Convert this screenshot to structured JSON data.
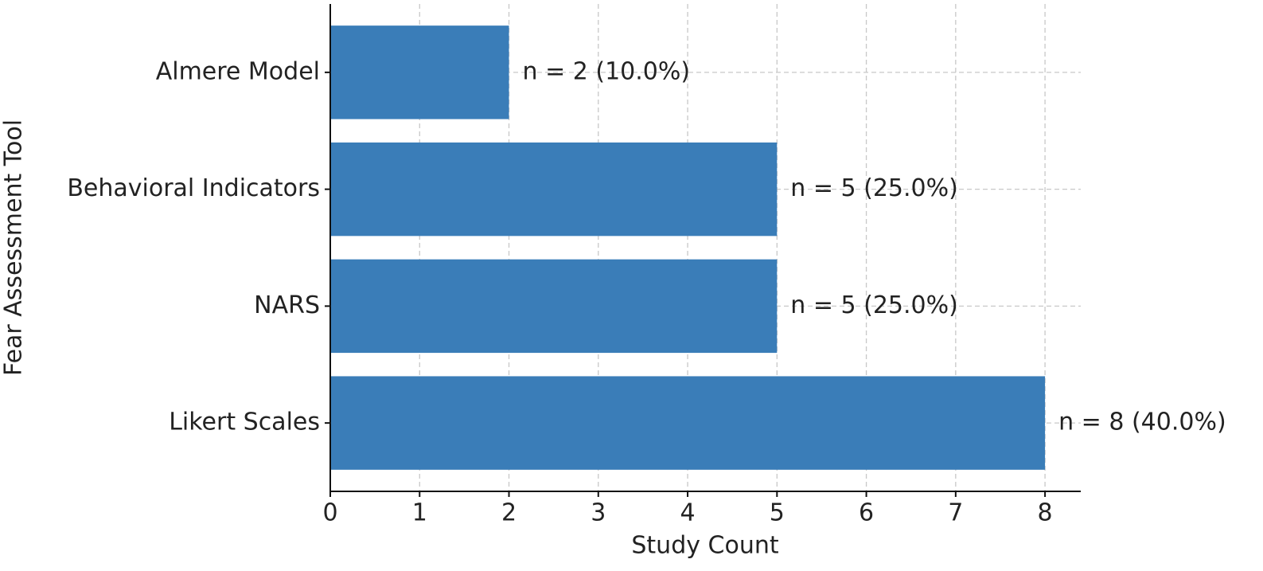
{
  "chart_data": {
    "type": "barh",
    "x_label": "Study Count",
    "y_label": "Fear Assessment Tool",
    "categories": [
      "Almere Model",
      "Behavioral Indicators",
      "NARS",
      "Likert Scales"
    ],
    "values": [
      2,
      5,
      5,
      8
    ],
    "value_labels": [
      "n = 2 (10.0%)",
      "n = 5 (25.0%)",
      "n = 5 (25.0%)",
      "n = 8 (40.0%)"
    ],
    "color": "#3a7db8",
    "xlim": [
      0,
      8.4
    ],
    "xticks": [
      0,
      1,
      2,
      3,
      4,
      5,
      6,
      7,
      8
    ],
    "grid": true
  }
}
